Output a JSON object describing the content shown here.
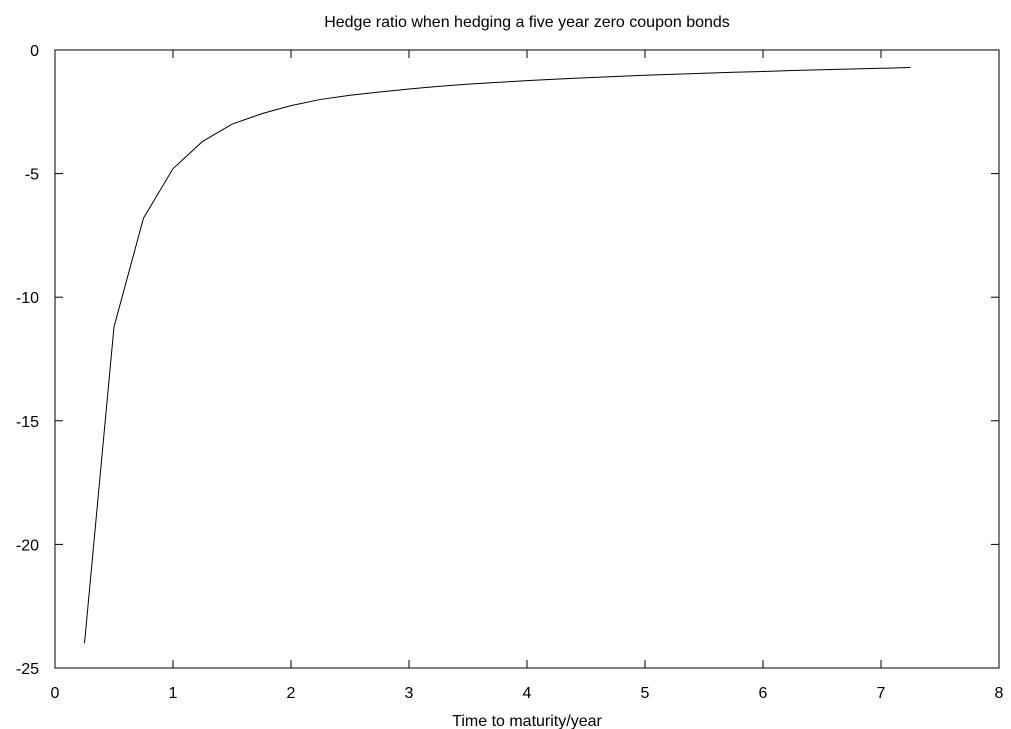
{
  "chart_data": {
    "type": "line",
    "title": "Hedge ratio when hedging a five year zero coupon bonds",
    "xlabel": "Time to maturity/year",
    "ylabel": "",
    "xlim": [
      0,
      8
    ],
    "ylim": [
      -25,
      0
    ],
    "x_ticks": [
      0,
      1,
      2,
      3,
      4,
      5,
      6,
      7,
      8
    ],
    "y_ticks": [
      -25,
      -20,
      -15,
      -10,
      -5,
      0
    ],
    "x_tick_labels": [
      "0",
      "1",
      "2",
      "3",
      "4",
      "5",
      "6",
      "7",
      "8"
    ],
    "y_tick_labels": [
      "-25",
      "-20",
      "-15",
      "-10",
      "-5",
      "0"
    ],
    "grid": false,
    "legend": "none",
    "line_color": "#000000",
    "series": [
      {
        "x": [
          0.25,
          0.5,
          0.75,
          1.0,
          1.25,
          1.5,
          1.75,
          2.0,
          2.25,
          2.5,
          2.75,
          3.0,
          3.25,
          3.5,
          3.75,
          4.0,
          4.25,
          4.5,
          4.75,
          5.0,
          5.25,
          5.5,
          5.75,
          6.0,
          6.25,
          6.5,
          6.75,
          7.0,
          7.25
        ],
        "values": [
          -24.0,
          -11.2,
          -6.8,
          -4.8,
          -3.7,
          -3.0,
          -2.58,
          -2.25,
          -2.0,
          -1.83,
          -1.7,
          -1.58,
          -1.47,
          -1.38,
          -1.31,
          -1.24,
          -1.18,
          -1.12,
          -1.07,
          -1.02,
          -0.98,
          -0.94,
          -0.9,
          -0.87,
          -0.83,
          -0.8,
          -0.77,
          -0.74,
          -0.71
        ]
      }
    ]
  }
}
